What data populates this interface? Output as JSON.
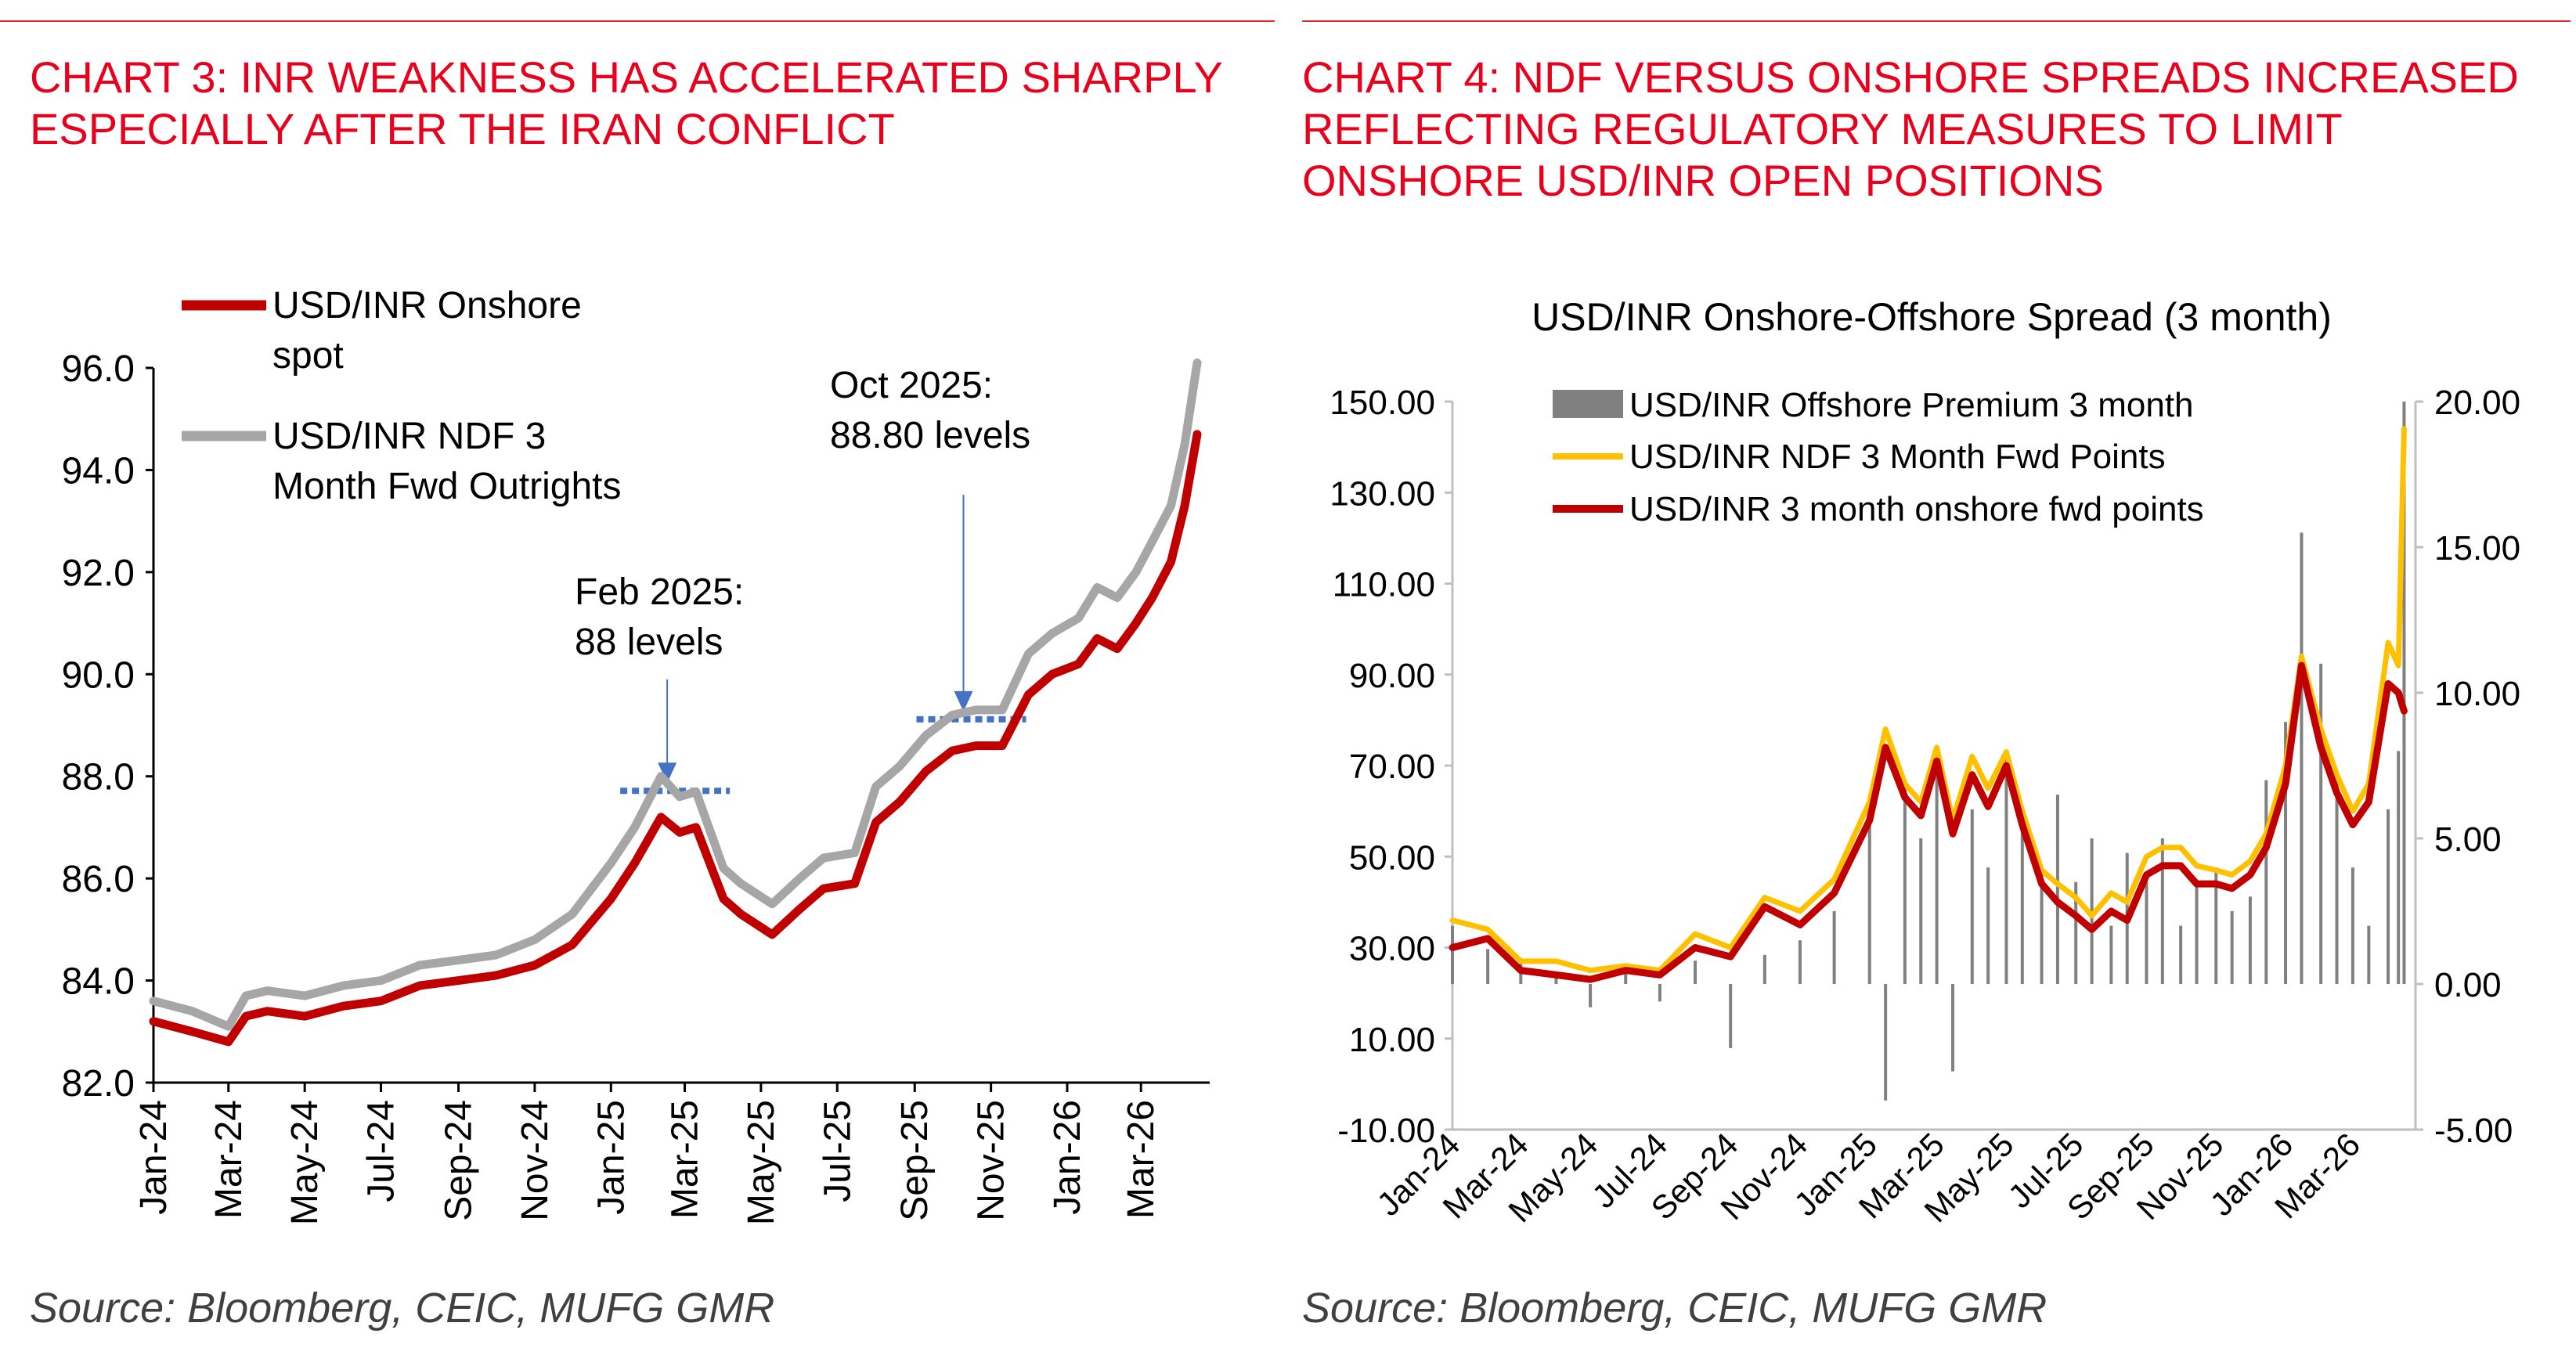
{
  "colors": {
    "accent_red": "#e8001c",
    "onshore_red": "#c00000",
    "ndf_grey": "#a6a6a6",
    "annotation_blue": "#4472c4",
    "ndf_orange": "#ffc000",
    "bar_grey": "#808080"
  },
  "left": {
    "title_lines": [
      "CHART 3: INR WEAKNESS HAS ACCELERATED SHARPLY",
      "ESPECIALLY AFTER THE IRAN CONFLICT"
    ],
    "legend": [
      {
        "lines": [
          "USD/INR Onshore",
          "spot"
        ]
      },
      {
        "lines": [
          "USD/INR NDF 3",
          "Month Fwd Outrights"
        ]
      }
    ],
    "annotations": [
      {
        "lines": [
          "Feb 2025:",
          "88 levels"
        ],
        "date": "2025-02-15",
        "level": 87.9
      },
      {
        "lines": [
          "Oct 2025:",
          "88.80 levels"
        ],
        "date": "2025-10-10",
        "level": 89.3
      }
    ],
    "source": "Source: Bloomberg, CEIC, MUFG GMR"
  },
  "right": {
    "title_lines": [
      "CHART 4: NDF VERSUS ONSHORE SPREADS INCREASED",
      "REFLECTING REGULATORY MEASURES TO LIMIT",
      "ONSHORE USD/INR OPEN POSITIONS"
    ],
    "source": "Source: Bloomberg, CEIC, MUFG GMR"
  },
  "chart_data": [
    {
      "type": "line",
      "title": "",
      "xlabel": "",
      "ylabel": "",
      "x_tick_labels": [
        "Jan-24",
        "Mar-24",
        "May-24",
        "Jul-24",
        "Sep-24",
        "Nov-24",
        "Jan-25",
        "Mar-25",
        "May-25",
        "Jul-25",
        "Sep-25",
        "Nov-25",
        "Jan-26",
        "Mar-26"
      ],
      "y_tick_labels": [
        "82.0",
        "84.0",
        "86.0",
        "88.0",
        "90.0",
        "92.0",
        "94.0",
        "96.0"
      ],
      "ylim": [
        82,
        96
      ],
      "xlim": [
        "2024-01-01",
        "2026-04-25"
      ],
      "grid": false,
      "legend_position": "top-left",
      "series": [
        {
          "name": "USD/INR Onshore spot",
          "color": "#c00000",
          "x": [
            "2024-01-01",
            "2024-02-01",
            "2024-03-01",
            "2024-03-15",
            "2024-04-01",
            "2024-05-01",
            "2024-06-01",
            "2024-07-01",
            "2024-08-01",
            "2024-09-01",
            "2024-10-01",
            "2024-11-01",
            "2024-12-01",
            "2025-01-01",
            "2025-01-20",
            "2025-02-10",
            "2025-02-25",
            "2025-03-10",
            "2025-04-01",
            "2025-04-15",
            "2025-05-10",
            "2025-06-01",
            "2025-06-20",
            "2025-07-15",
            "2025-08-01",
            "2025-08-20",
            "2025-09-10",
            "2025-10-01",
            "2025-10-20",
            "2025-11-10",
            "2025-12-01",
            "2025-12-20",
            "2026-01-10",
            "2026-01-25",
            "2026-02-10",
            "2026-02-25",
            "2026-03-10",
            "2026-03-25",
            "2026-04-05",
            "2026-04-15"
          ],
          "y": [
            83.2,
            83.0,
            82.8,
            83.3,
            83.4,
            83.3,
            83.5,
            83.6,
            83.9,
            84.0,
            84.1,
            84.3,
            84.7,
            85.6,
            86.3,
            87.2,
            86.9,
            87.0,
            85.6,
            85.3,
            84.9,
            85.4,
            85.8,
            85.9,
            87.1,
            87.5,
            88.1,
            88.5,
            88.6,
            88.6,
            89.6,
            90.0,
            90.2,
            90.7,
            90.5,
            91.0,
            91.5,
            92.2,
            93.3,
            94.7
          ]
        },
        {
          "name": "USD/INR NDF 3 Month Fwd Outrights",
          "color": "#a6a6a6",
          "x": [
            "2024-01-01",
            "2024-02-01",
            "2024-03-01",
            "2024-03-15",
            "2024-04-01",
            "2024-05-01",
            "2024-06-01",
            "2024-07-01",
            "2024-08-01",
            "2024-09-01",
            "2024-10-01",
            "2024-11-01",
            "2024-12-01",
            "2025-01-01",
            "2025-01-20",
            "2025-02-10",
            "2025-02-25",
            "2025-03-10",
            "2025-04-01",
            "2025-04-15",
            "2025-05-10",
            "2025-06-01",
            "2025-06-20",
            "2025-07-15",
            "2025-08-01",
            "2025-08-20",
            "2025-09-10",
            "2025-10-01",
            "2025-10-20",
            "2025-11-10",
            "2025-12-01",
            "2025-12-20",
            "2026-01-10",
            "2026-01-25",
            "2026-02-10",
            "2026-02-25",
            "2026-03-10",
            "2026-03-25",
            "2026-04-05",
            "2026-04-15"
          ],
          "y": [
            83.6,
            83.4,
            83.1,
            83.7,
            83.8,
            83.7,
            83.9,
            84.0,
            84.3,
            84.4,
            84.5,
            84.8,
            85.3,
            86.3,
            87.0,
            88.0,
            87.6,
            87.7,
            86.2,
            85.9,
            85.5,
            86.0,
            86.4,
            86.5,
            87.8,
            88.2,
            88.8,
            89.2,
            89.3,
            89.3,
            90.4,
            90.8,
            91.1,
            91.7,
            91.5,
            92.0,
            92.6,
            93.3,
            94.5,
            96.1
          ]
        }
      ]
    },
    {
      "type": "bar",
      "title": "USD/INR Onshore-Offshore Spread (3 month)",
      "xlabel": "",
      "ylabel": "",
      "x_tick_labels": [
        "Jan-24",
        "Mar-24",
        "May-24",
        "Jul-24",
        "Sep-24",
        "Nov-24",
        "Jan-25",
        "Mar-25",
        "May-25",
        "Jul-25",
        "Sep-25",
        "Nov-25",
        "Jan-26",
        "Mar-26"
      ],
      "y_left_tick_labels": [
        "-10.00",
        "10.00",
        "30.00",
        "50.00",
        "70.00",
        "90.00",
        "110.00",
        "130.00",
        "150.00"
      ],
      "y_right_tick_labels": [
        "-5.00",
        "0.00",
        "5.00",
        "10.00",
        "15.00",
        "20.00"
      ],
      "ylim_left": [
        -10,
        150
      ],
      "ylim_right": [
        -5,
        20
      ],
      "xlim": [
        "2024-01-01",
        "2026-04-25"
      ],
      "grid": false,
      "legend_position": "top",
      "series": [
        {
          "name": "USD/INR Offshore Premium 3 month",
          "color": "#808080",
          "kind": "bar",
          "axis": "right",
          "x": [
            "2024-01-01",
            "2024-02-01",
            "2024-03-01",
            "2024-04-01",
            "2024-05-01",
            "2024-06-01",
            "2024-07-01",
            "2024-08-01",
            "2024-09-01",
            "2024-10-01",
            "2024-11-01",
            "2024-12-01",
            "2025-01-01",
            "2025-01-15",
            "2025-02-01",
            "2025-02-15",
            "2025-03-01",
            "2025-03-15",
            "2025-04-01",
            "2025-04-15",
            "2025-05-01",
            "2025-05-15",
            "2025-06-01",
            "2025-06-15",
            "2025-07-01",
            "2025-07-15",
            "2025-08-01",
            "2025-08-15",
            "2025-09-01",
            "2025-09-15",
            "2025-10-01",
            "2025-10-15",
            "2025-11-01",
            "2025-11-15",
            "2025-12-01",
            "2025-12-15",
            "2026-01-01",
            "2026-01-15",
            "2026-02-01",
            "2026-02-15",
            "2026-03-01",
            "2026-03-15",
            "2026-04-01",
            "2026-04-10",
            "2026-04-15"
          ],
          "y": [
            2.0,
            1.2,
            0.8,
            0.3,
            -0.8,
            0.4,
            -0.6,
            0.8,
            -2.2,
            1.0,
            1.5,
            2.5,
            5.5,
            -4.0,
            7.0,
            5.0,
            8.0,
            -3.0,
            6.0,
            4.0,
            8.0,
            5.5,
            4.0,
            6.5,
            3.5,
            5.0,
            2.0,
            4.5,
            3.5,
            5.0,
            2.0,
            3.5,
            4.0,
            2.5,
            3.0,
            7.0,
            9.0,
            15.5,
            11.0,
            7.0,
            4.0,
            2.0,
            6.0,
            8.0,
            20.0
          ]
        },
        {
          "name": "USD/INR NDF 3 Month Fwd Points",
          "color": "#ffc000",
          "kind": "line",
          "axis": "left",
          "x": [
            "2024-01-01",
            "2024-02-01",
            "2024-03-01",
            "2024-04-01",
            "2024-05-01",
            "2024-06-01",
            "2024-07-01",
            "2024-08-01",
            "2024-09-01",
            "2024-10-01",
            "2024-11-01",
            "2024-12-01",
            "2025-01-01",
            "2025-01-15",
            "2025-02-01",
            "2025-02-15",
            "2025-03-01",
            "2025-03-15",
            "2025-04-01",
            "2025-04-15",
            "2025-05-01",
            "2025-05-15",
            "2025-06-01",
            "2025-06-15",
            "2025-07-01",
            "2025-07-15",
            "2025-08-01",
            "2025-08-15",
            "2025-09-01",
            "2025-09-15",
            "2025-10-01",
            "2025-10-15",
            "2025-11-01",
            "2025-11-15",
            "2025-12-01",
            "2025-12-15",
            "2026-01-01",
            "2026-01-15",
            "2026-02-01",
            "2026-02-15",
            "2026-03-01",
            "2026-03-15",
            "2026-04-01",
            "2026-04-10",
            "2026-04-15"
          ],
          "y": [
            36,
            34,
            27,
            27,
            25,
            26,
            25,
            33,
            30,
            41,
            38,
            45,
            62,
            78,
            66,
            62,
            74,
            58,
            72,
            65,
            73,
            60,
            47,
            44,
            41,
            37,
            42,
            40,
            50,
            52,
            52,
            48,
            47,
            46,
            49,
            55,
            70,
            94,
            78,
            68,
            60,
            66,
            97,
            92,
            144
          ]
        },
        {
          "name": "USD/INR 3 month onshore fwd points",
          "color": "#c00000",
          "kind": "line",
          "axis": "left",
          "x": [
            "2024-01-01",
            "2024-02-01",
            "2024-03-01",
            "2024-04-01",
            "2024-05-01",
            "2024-06-01",
            "2024-07-01",
            "2024-08-01",
            "2024-09-01",
            "2024-10-01",
            "2024-11-01",
            "2024-12-01",
            "2025-01-01",
            "2025-01-15",
            "2025-02-01",
            "2025-02-15",
            "2025-03-01",
            "2025-03-15",
            "2025-04-01",
            "2025-04-15",
            "2025-05-01",
            "2025-05-15",
            "2025-06-01",
            "2025-06-15",
            "2025-07-01",
            "2025-07-15",
            "2025-08-01",
            "2025-08-15",
            "2025-09-01",
            "2025-09-15",
            "2025-10-01",
            "2025-10-15",
            "2025-11-01",
            "2025-11-15",
            "2025-12-01",
            "2025-12-15",
            "2026-01-01",
            "2026-01-15",
            "2026-02-01",
            "2026-02-15",
            "2026-03-01",
            "2026-03-15",
            "2026-04-01",
            "2026-04-10",
            "2026-04-15"
          ],
          "y": [
            30,
            32,
            25,
            24,
            23,
            25,
            24,
            30,
            28,
            39,
            35,
            42,
            58,
            74,
            63,
            59,
            71,
            55,
            68,
            61,
            70,
            57,
            44,
            40,
            37,
            34,
            38,
            36,
            46,
            48,
            48,
            44,
            44,
            43,
            46,
            52,
            66,
            92,
            74,
            64,
            57,
            62,
            88,
            86,
            82
          ]
        }
      ]
    }
  ]
}
